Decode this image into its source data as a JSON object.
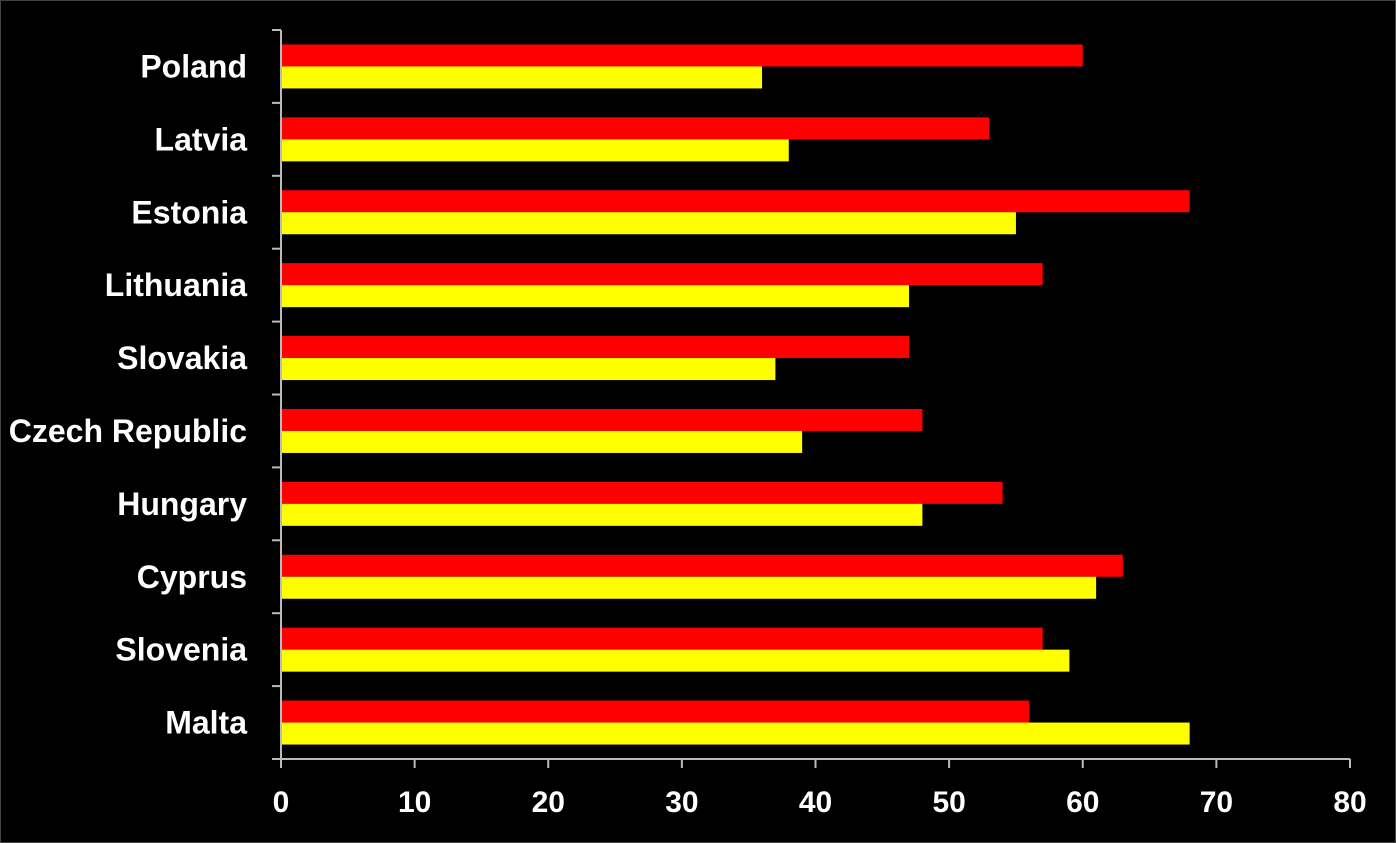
{
  "chart_data": {
    "type": "bar",
    "orientation": "horizontal",
    "categories": [
      "Poland",
      "Latvia",
      "Estonia",
      "Lithuania",
      "Slovakia",
      "Czech Republic",
      "Hungary",
      "Cyprus",
      "Slovenia",
      "Malta"
    ],
    "series": [
      {
        "color": "#ff0000",
        "values": [
          60,
          53,
          68,
          57,
          47,
          48,
          54,
          63,
          57,
          56
        ]
      },
      {
        "color": "#ffff00",
        "values": [
          36,
          38,
          55,
          47,
          37,
          39,
          48,
          61,
          59,
          68
        ]
      }
    ],
    "xlim": [
      0,
      80
    ],
    "xticks": [
      "0",
      "10",
      "20",
      "30",
      "40",
      "50",
      "60",
      "70",
      "80"
    ],
    "title": "",
    "xlabel": "",
    "ylabel": "",
    "grid": false,
    "legend": false,
    "background": "#000000",
    "axis_color": "#bbbbbb",
    "text_color": "#ffffff"
  }
}
